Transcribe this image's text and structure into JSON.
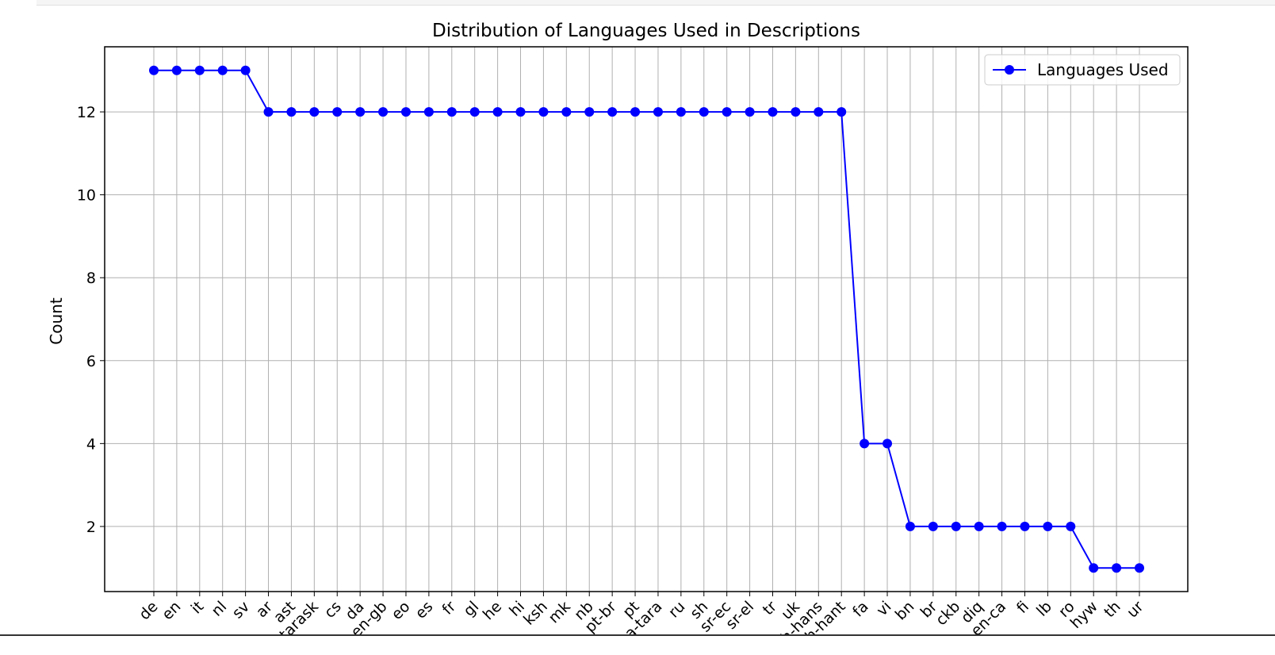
{
  "chart_data": {
    "type": "line",
    "title": "Distribution of Languages Used in Descriptions",
    "xlabel": "",
    "ylabel": "Count",
    "ylim": [
      0.43,
      13.57
    ],
    "yticks": [
      2,
      4,
      6,
      8,
      10,
      12
    ],
    "grid": true,
    "legend_position": "top-right",
    "categories": [
      "de",
      "en",
      "it",
      "nl",
      "sv",
      "ar",
      "ast",
      "be-tarask",
      "cs",
      "da",
      "en-gb",
      "eo",
      "es",
      "fr",
      "gl",
      "he",
      "hi",
      "ksh",
      "mk",
      "nb",
      "pt-br",
      "pt",
      "roa-tara",
      "ru",
      "sh",
      "sr-ec",
      "sr-el",
      "tr",
      "uk",
      "zh-hans",
      "zh-hant",
      "fa",
      "vi",
      "bn",
      "br",
      "ckb",
      "diq",
      "en-ca",
      "fi",
      "lb",
      "ro",
      "hyw",
      "th",
      "ur"
    ],
    "series": [
      {
        "name": "Languages Used",
        "color": "#0000ff",
        "marker": "circle",
        "values": [
          13,
          13,
          13,
          13,
          13,
          12,
          12,
          12,
          12,
          12,
          12,
          12,
          12,
          12,
          12,
          12,
          12,
          12,
          12,
          12,
          12,
          12,
          12,
          12,
          12,
          12,
          12,
          12,
          12,
          12,
          12,
          4,
          4,
          2,
          2,
          2,
          2,
          2,
          2,
          2,
          2,
          1,
          1,
          1
        ]
      }
    ]
  }
}
